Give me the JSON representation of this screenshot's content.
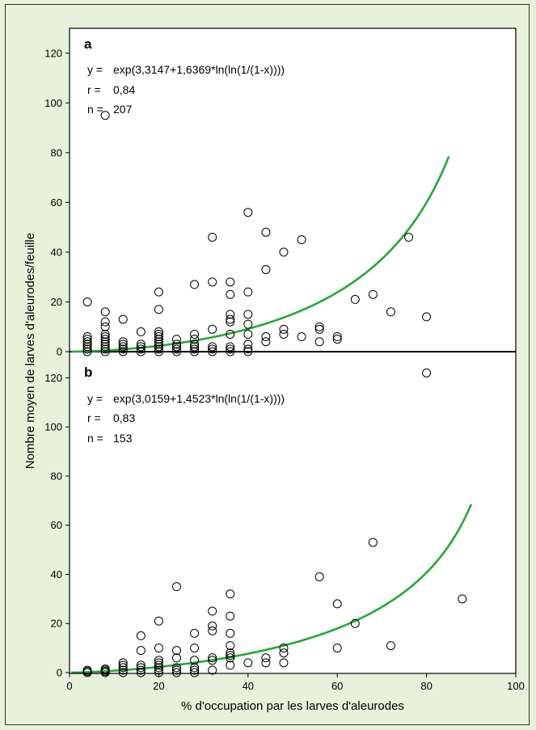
{
  "chart_data": {
    "type": "scatter",
    "xlabel": "% d'occupation par les larves d'aleurodes",
    "ylabel": "Nombre moyen de larves d'aleurodes/feuille",
    "xlim": [
      0,
      100
    ],
    "x_ticks": [
      "0",
      "20",
      "40",
      "60",
      "80",
      "100"
    ],
    "grid": false,
    "colors": {
      "fit": "#22aa33",
      "points": "#000000",
      "background": "#e6f2dc"
    },
    "panels": [
      {
        "label": "a",
        "ylim": [
          0,
          130
        ],
        "y_ticks": [
          "0",
          "20",
          "40",
          "60",
          "80",
          "100",
          "120"
        ],
        "equation": {
          "y_label": "y =",
          "y_value": "exp(3,3147+1,6369*ln(ln(1/(1-x))))",
          "r_label": "r =",
          "r_value": "0,84",
          "n_label": "n =",
          "n_value": "207"
        },
        "fit": {
          "a": 3.3147,
          "b": 1.6369,
          "x_range": [
            0,
            85
          ]
        },
        "points": [
          [
            4,
            20
          ],
          [
            4,
            6
          ],
          [
            4,
            5
          ],
          [
            4,
            4
          ],
          [
            4,
            3
          ],
          [
            4,
            2
          ],
          [
            4,
            1
          ],
          [
            4,
            0
          ],
          [
            8,
            95
          ],
          [
            8,
            16
          ],
          [
            8,
            12
          ],
          [
            8,
            10
          ],
          [
            8,
            7
          ],
          [
            8,
            6
          ],
          [
            8,
            5
          ],
          [
            8,
            4
          ],
          [
            8,
            3
          ],
          [
            8,
            2
          ],
          [
            8,
            1
          ],
          [
            8,
            0
          ],
          [
            12,
            13
          ],
          [
            12,
            4
          ],
          [
            12,
            3
          ],
          [
            12,
            2
          ],
          [
            12,
            1
          ],
          [
            12,
            0
          ],
          [
            16,
            8
          ],
          [
            16,
            3
          ],
          [
            16,
            2
          ],
          [
            16,
            1
          ],
          [
            16,
            0
          ],
          [
            20,
            24
          ],
          [
            20,
            17
          ],
          [
            20,
            8
          ],
          [
            20,
            7
          ],
          [
            20,
            6
          ],
          [
            20,
            5
          ],
          [
            20,
            4
          ],
          [
            20,
            3
          ],
          [
            20,
            2
          ],
          [
            20,
            1
          ],
          [
            20,
            0
          ],
          [
            24,
            5
          ],
          [
            24,
            3
          ],
          [
            24,
            2
          ],
          [
            24,
            1
          ],
          [
            24,
            0
          ],
          [
            28,
            27
          ],
          [
            28,
            7
          ],
          [
            28,
            5
          ],
          [
            28,
            3
          ],
          [
            28,
            2
          ],
          [
            28,
            1
          ],
          [
            28,
            0
          ],
          [
            32,
            46
          ],
          [
            32,
            28
          ],
          [
            32,
            9
          ],
          [
            32,
            2
          ],
          [
            32,
            1
          ],
          [
            32,
            0
          ],
          [
            36,
            28
          ],
          [
            36,
            23
          ],
          [
            36,
            15
          ],
          [
            36,
            13
          ],
          [
            36,
            12
          ],
          [
            36,
            7
          ],
          [
            36,
            2
          ],
          [
            36,
            1
          ],
          [
            36,
            0
          ],
          [
            40,
            56
          ],
          [
            40,
            24
          ],
          [
            40,
            15
          ],
          [
            40,
            11
          ],
          [
            40,
            7
          ],
          [
            40,
            3
          ],
          [
            40,
            1
          ],
          [
            40,
            0
          ],
          [
            44,
            48
          ],
          [
            44,
            33
          ],
          [
            44,
            6
          ],
          [
            44,
            4
          ],
          [
            48,
            40
          ],
          [
            48,
            9
          ],
          [
            48,
            7
          ],
          [
            52,
            45
          ],
          [
            52,
            6
          ],
          [
            56,
            10
          ],
          [
            56,
            9
          ],
          [
            56,
            4
          ],
          [
            60,
            6
          ],
          [
            60,
            5
          ],
          [
            64,
            21
          ],
          [
            68,
            23
          ],
          [
            72,
            16
          ],
          [
            76,
            46
          ],
          [
            80,
            14
          ]
        ]
      },
      {
        "label": "b",
        "ylim": [
          0,
          130
        ],
        "y_ticks": [
          "0",
          "20",
          "40",
          "60",
          "80",
          "100",
          "120"
        ],
        "equation": {
          "y_label": "y =",
          "y_value": "exp(3,0159+1,4523*ln(ln(1/(1-x))))",
          "r_label": "r =",
          "r_value": "0,83",
          "n_label": "n =",
          "n_value": "153"
        },
        "fit": {
          "a": 3.0159,
          "b": 1.4523,
          "x_range": [
            0,
            90
          ]
        },
        "points": [
          [
            4,
            1
          ],
          [
            4,
            0.5
          ],
          [
            4,
            0
          ],
          [
            8,
            1.5
          ],
          [
            8,
            1
          ],
          [
            8,
            0.5
          ],
          [
            8,
            0
          ],
          [
            12,
            4
          ],
          [
            12,
            3
          ],
          [
            12,
            2
          ],
          [
            12,
            1
          ],
          [
            12,
            0
          ],
          [
            16,
            15
          ],
          [
            16,
            9
          ],
          [
            16,
            3
          ],
          [
            16,
            2
          ],
          [
            16,
            1
          ],
          [
            16,
            0
          ],
          [
            20,
            21
          ],
          [
            20,
            10
          ],
          [
            20,
            5
          ],
          [
            20,
            4
          ],
          [
            20,
            3
          ],
          [
            20,
            2
          ],
          [
            20,
            1
          ],
          [
            20,
            0
          ],
          [
            24,
            35
          ],
          [
            24,
            9
          ],
          [
            24,
            6
          ],
          [
            24,
            2
          ],
          [
            24,
            1
          ],
          [
            24,
            0
          ],
          [
            28,
            16
          ],
          [
            28,
            10
          ],
          [
            28,
            5
          ],
          [
            28,
            2
          ],
          [
            28,
            1
          ],
          [
            28,
            0
          ],
          [
            32,
            25
          ],
          [
            32,
            19
          ],
          [
            32,
            17
          ],
          [
            32,
            6
          ],
          [
            32,
            5
          ],
          [
            32,
            1
          ],
          [
            36,
            32
          ],
          [
            36,
            23
          ],
          [
            36,
            16
          ],
          [
            36,
            11
          ],
          [
            36,
            8
          ],
          [
            36,
            7
          ],
          [
            36,
            6
          ],
          [
            36,
            3
          ],
          [
            40,
            4
          ],
          [
            44,
            6
          ],
          [
            44,
            4
          ],
          [
            48,
            10
          ],
          [
            48,
            8
          ],
          [
            48,
            4
          ],
          [
            56,
            39
          ],
          [
            60,
            28
          ],
          [
            60,
            10
          ],
          [
            64,
            20
          ],
          [
            68,
            53
          ],
          [
            72,
            11
          ],
          [
            80,
            122
          ],
          [
            88,
            30
          ]
        ]
      }
    ]
  }
}
